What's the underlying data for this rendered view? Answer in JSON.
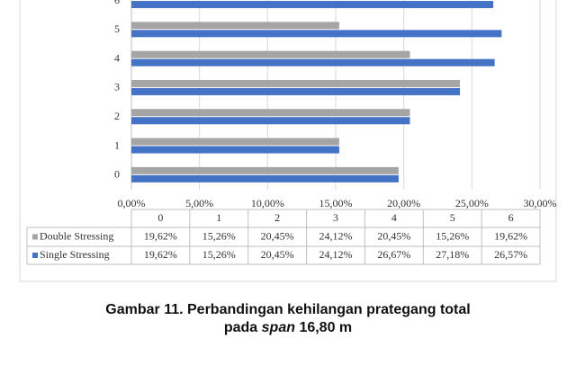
{
  "chart_data": {
    "type": "bar",
    "orientation": "horizontal",
    "categories": [
      "0",
      "1",
      "2",
      "3",
      "4",
      "5",
      "6"
    ],
    "series": [
      {
        "name": "Double Stressing",
        "color": "#a5a5a5",
        "values": [
          19.62,
          15.26,
          20.45,
          24.12,
          20.45,
          15.26,
          19.62
        ],
        "value_labels": [
          "19,62%",
          "15,26%",
          "20,45%",
          "24,12%",
          "20,45%",
          "15,26%",
          "19,62%"
        ]
      },
      {
        "name": "Single Stressing",
        "color": "#4472c4",
        "values": [
          19.62,
          15.26,
          20.45,
          24.12,
          26.67,
          27.18,
          26.57
        ],
        "value_labels": [
          "19,62%",
          "15,26%",
          "20,45%",
          "24,12%",
          "26,67%",
          "27,18%",
          "26,57%"
        ]
      }
    ],
    "xlim": [
      0,
      30
    ],
    "xticks": [
      {
        "value": 0,
        "label": "0,00%"
      },
      {
        "value": 5,
        "label": "5,00%"
      },
      {
        "value": 10,
        "label": "10,00%"
      },
      {
        "value": 15,
        "label": "15,00%"
      },
      {
        "value": 20,
        "label": "20,00%"
      },
      {
        "value": 25,
        "label": "25,00%"
      },
      {
        "value": 30,
        "label": "30,00%"
      }
    ],
    "grid": true
  },
  "caption": {
    "line1": "Gambar 11. Perbandingan kehilangan prategang total",
    "prefix": "pada",
    "italic": "span",
    "suffix": "16,80 m"
  }
}
